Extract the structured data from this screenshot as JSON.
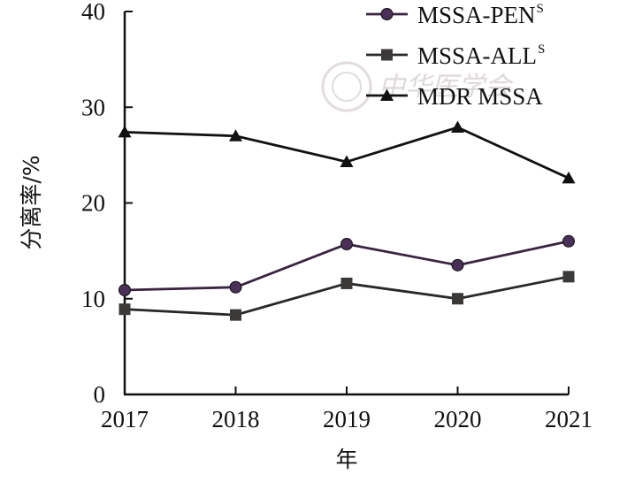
{
  "chart_data": {
    "type": "line",
    "xlabel": "年",
    "ylabel": "分离率/%",
    "x": [
      "2017",
      "2018",
      "2019",
      "2020",
      "2021"
    ],
    "ylim": [
      0,
      40
    ],
    "yticks": [
      "0",
      "10",
      "20",
      "30",
      "40"
    ],
    "grid": false,
    "legend_position": "top-right",
    "series": [
      {
        "name": "MSSA-PEN",
        "sup": "S",
        "marker": "circle",
        "line_color": "#3a2440",
        "marker_color": "#4a2f58",
        "values": [
          10.9,
          11.2,
          15.7,
          13.5,
          16.0
        ]
      },
      {
        "name": "MSSA-ALL",
        "sup": "S",
        "marker": "square",
        "line_color": "#2a2727",
        "marker_color": "#3b3838",
        "values": [
          8.9,
          8.3,
          11.6,
          10.0,
          12.3
        ]
      },
      {
        "name": "MDR MSSA",
        "sup": "",
        "marker": "triangle",
        "line_color": "#111111",
        "marker_color": "#111111",
        "values": [
          27.4,
          27.0,
          24.3,
          27.9,
          22.6
        ]
      }
    ]
  },
  "watermark": {
    "text": "中华医学会"
  }
}
